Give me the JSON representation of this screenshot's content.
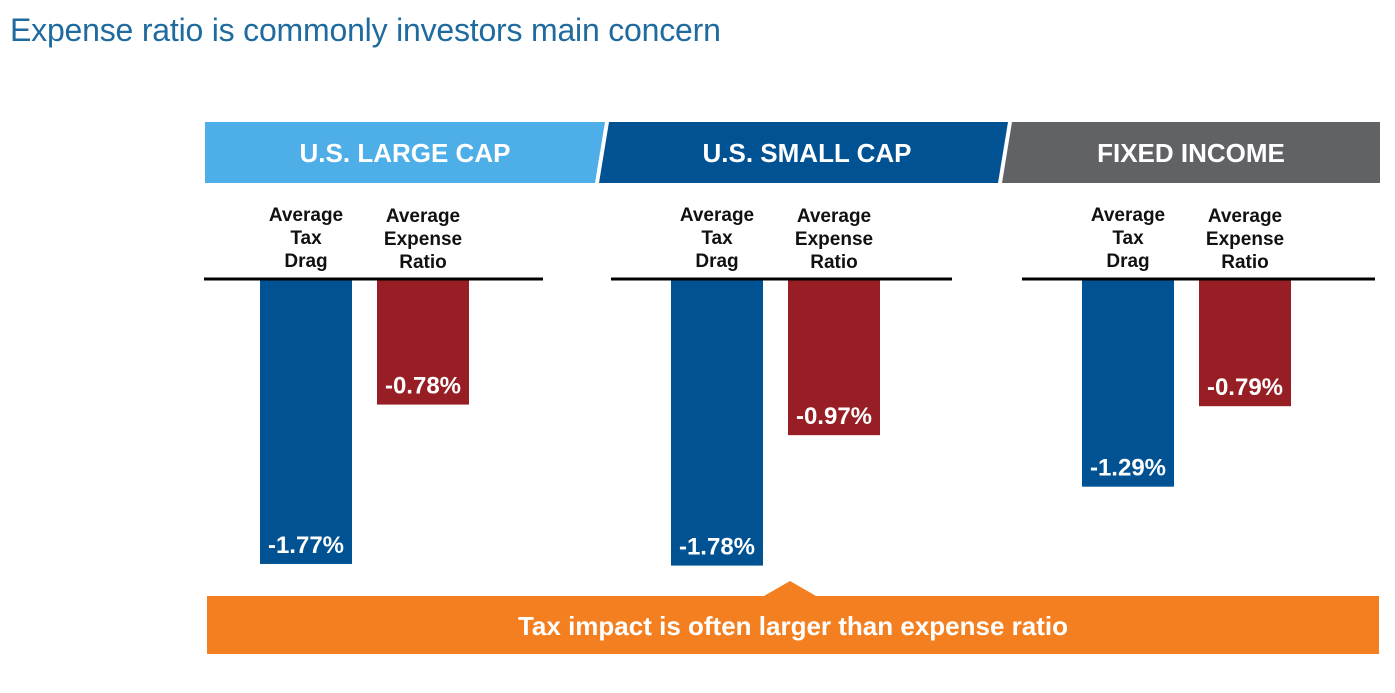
{
  "page": {
    "title": "Expense ratio is commonly investors main concern"
  },
  "colors": {
    "title": "#1f6a9e",
    "tax_drag": "#005293",
    "expense_ratio": "#971e24",
    "callout": "#f47f20",
    "baseline": "#000000",
    "label_text": "#111111",
    "value_text": "#ffffff"
  },
  "chart_data": {
    "type": "bar",
    "title": "Expense ratio is commonly investors main concern",
    "xlabel": "",
    "ylabel": "",
    "ylim": [
      -1.8,
      0
    ],
    "grid": false,
    "orientation": "vertical-downward",
    "categories": [
      "U.S. LARGE CAP",
      "U.S. SMALL CAP",
      "FIXED INCOME"
    ],
    "category_colors": [
      "#4eaee8",
      "#005293",
      "#616265"
    ],
    "series_labels": [
      [
        "Average",
        "Tax",
        "Drag"
      ],
      [
        "Average",
        "Expense",
        "Ratio"
      ]
    ],
    "series": [
      {
        "name": "Average Tax Drag",
        "color": "#005293",
        "values": [
          -1.77,
          -1.78,
          -1.29
        ],
        "labels": [
          "-1.77%",
          "-1.78%",
          "-1.29%"
        ]
      },
      {
        "name": "Average Expense Ratio",
        "color": "#971e24",
        "values": [
          -0.78,
          -0.97,
          -0.79
        ],
        "labels": [
          "-0.78%",
          "-0.97%",
          "-0.79%"
        ]
      }
    ],
    "annotation": "Tax impact is often larger than expense ratio"
  }
}
